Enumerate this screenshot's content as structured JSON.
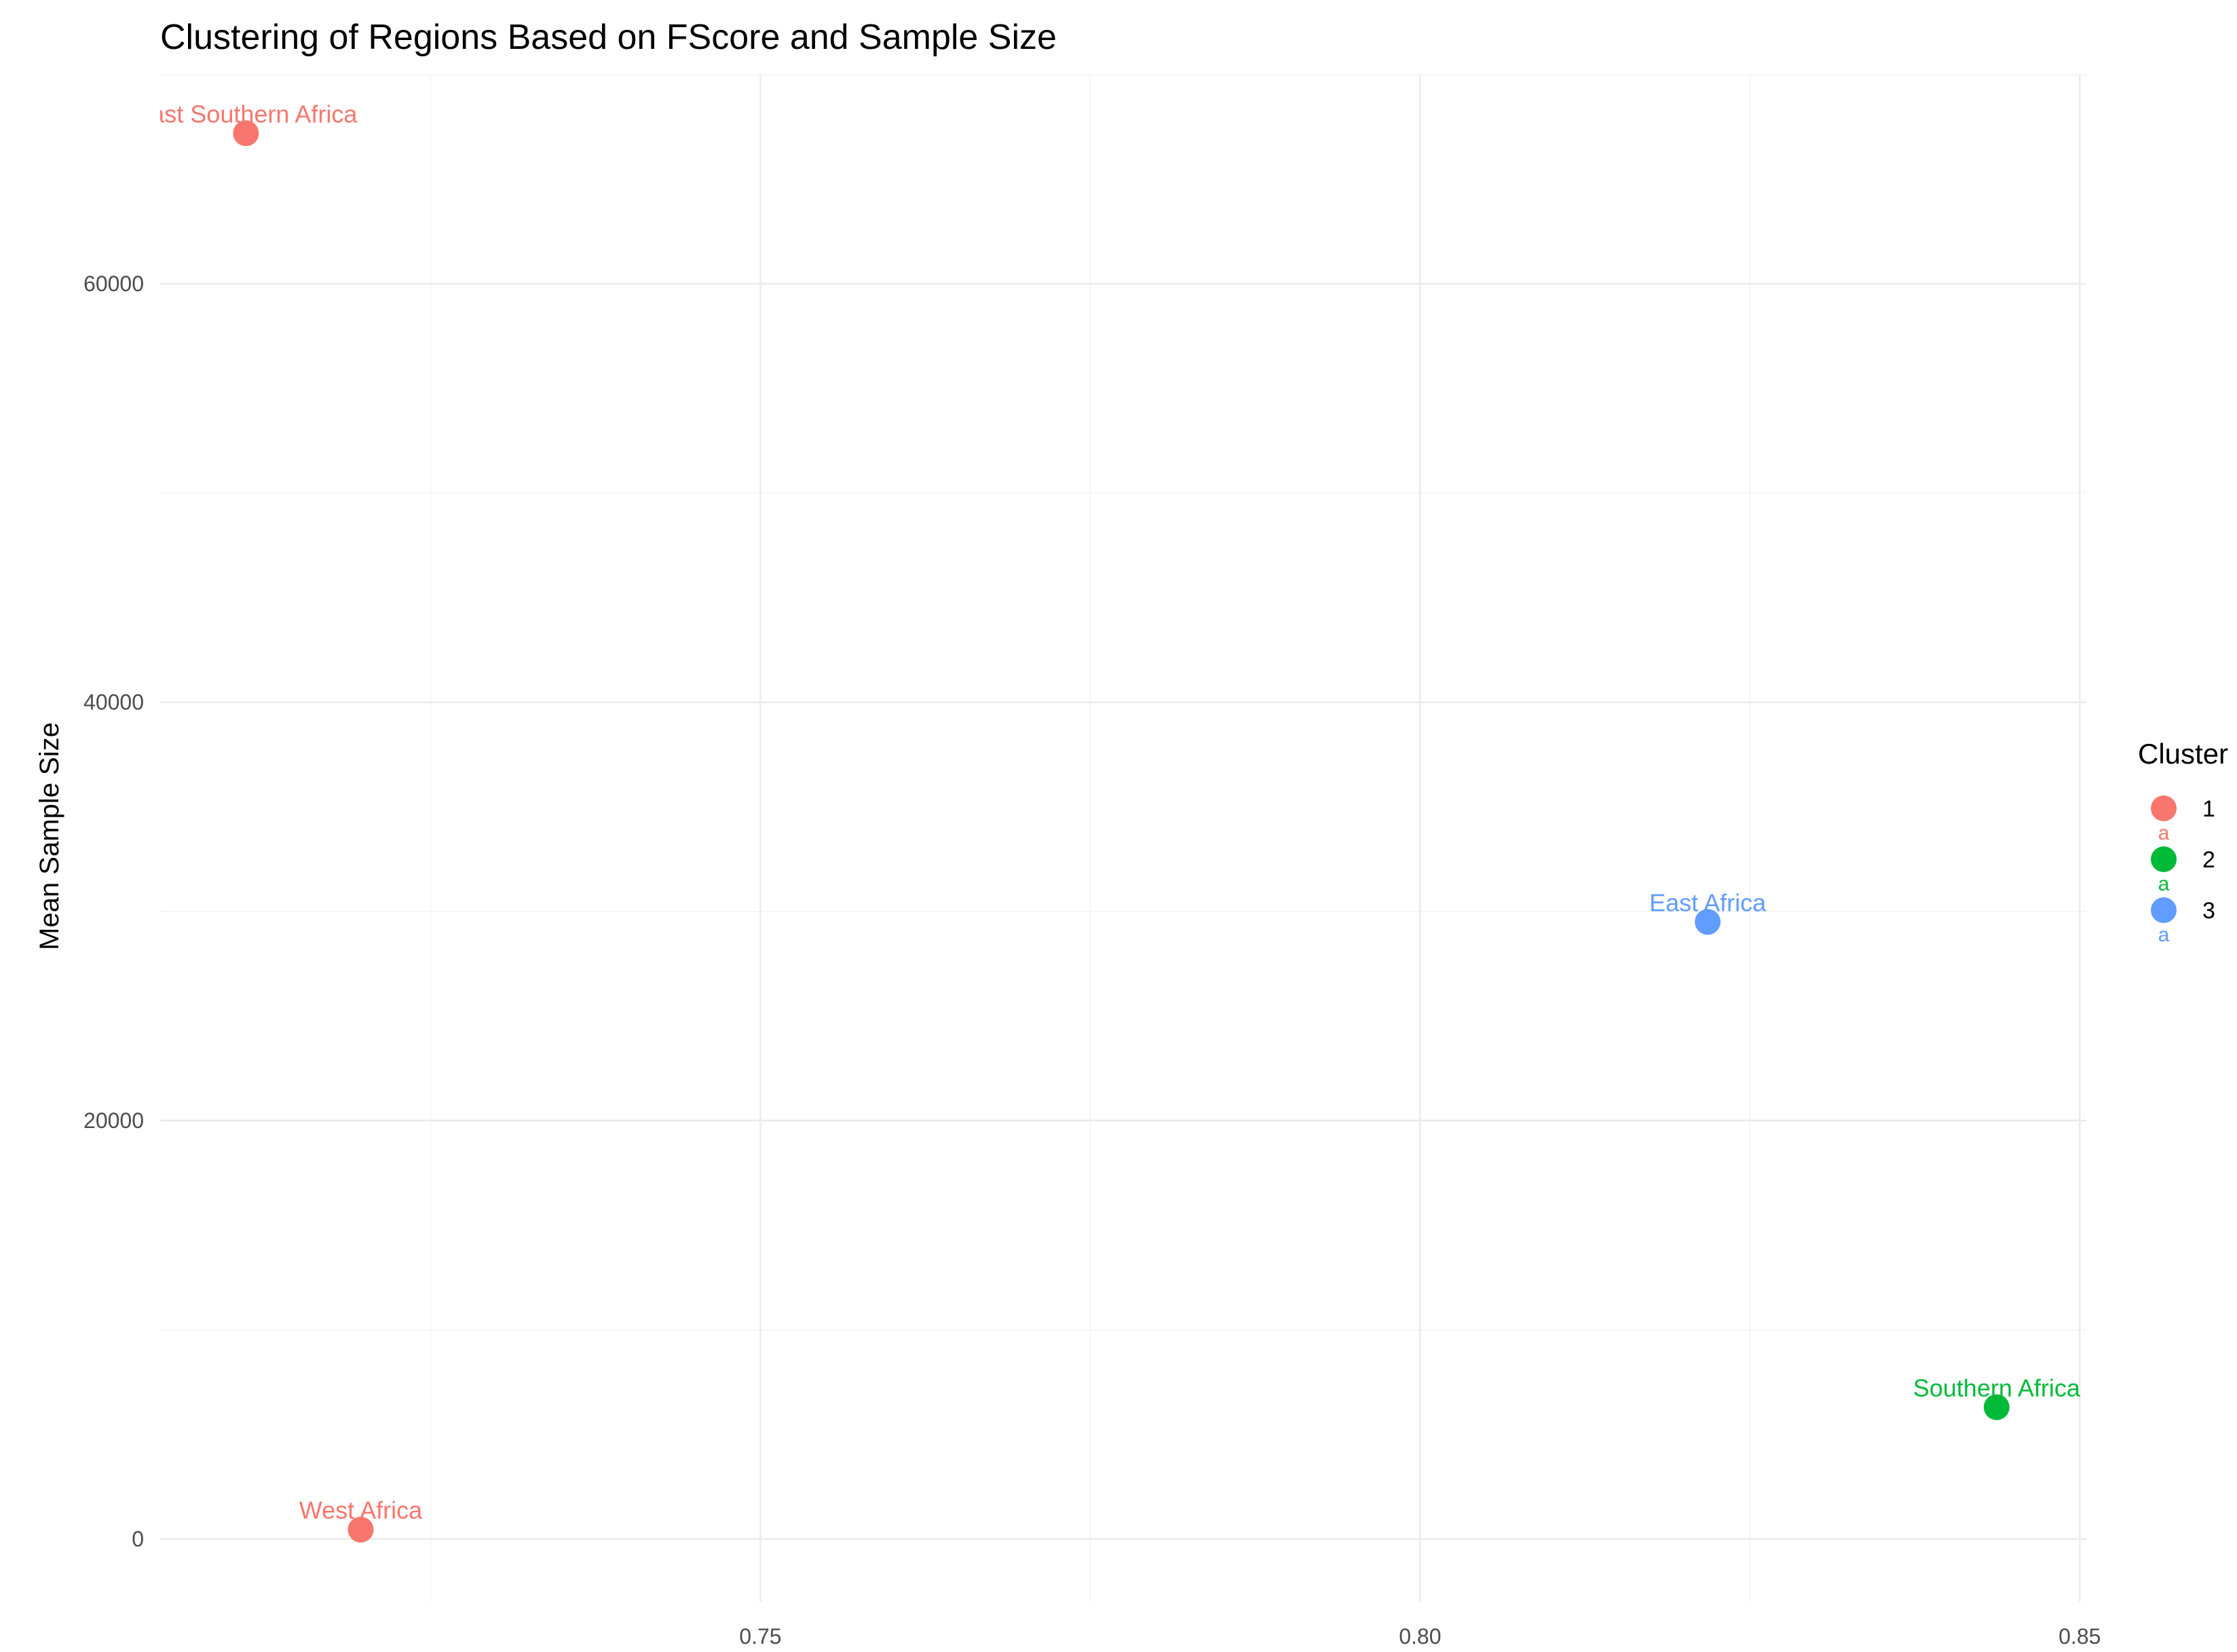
{
  "chart_data": {
    "type": "scatter",
    "title": "Clustering of Regions Based on FScore and Sample Size",
    "xlabel": "",
    "ylabel": "Mean Sample Size",
    "xlim": [
      0.7045,
      0.8505
    ],
    "ylim": [
      -3000,
      70000
    ],
    "x_ticks": [
      0.75,
      0.8,
      0.85
    ],
    "x_tick_labels": [
      "0.75",
      "0.80",
      "0.85"
    ],
    "y_ticks": [
      0,
      20000,
      40000,
      60000
    ],
    "y_tick_labels": [
      "0",
      "20000",
      "40000",
      "60000"
    ],
    "grid": true,
    "legend": {
      "title": "Cluster",
      "position": "right",
      "key_glyph_text": "a",
      "entries": [
        {
          "label": "1",
          "color": "#F8766D"
        },
        {
          "label": "2",
          "color": "#00BA38"
        },
        {
          "label": "3",
          "color": "#619CFF"
        }
      ]
    },
    "points": [
      {
        "label": "East Southern Africa",
        "x": 0.711,
        "y": 67200,
        "cluster": "1",
        "color": "#F8766D"
      },
      {
        "label": "West Africa",
        "x": 0.7197,
        "y": 450,
        "cluster": "1",
        "color": "#F8766D"
      },
      {
        "label": "Southern Africa",
        "x": 0.8437,
        "y": 6300,
        "cluster": "2",
        "color": "#00BA38"
      },
      {
        "label": "East Africa",
        "x": 0.8218,
        "y": 29500,
        "cluster": "3",
        "color": "#619CFF"
      }
    ]
  }
}
